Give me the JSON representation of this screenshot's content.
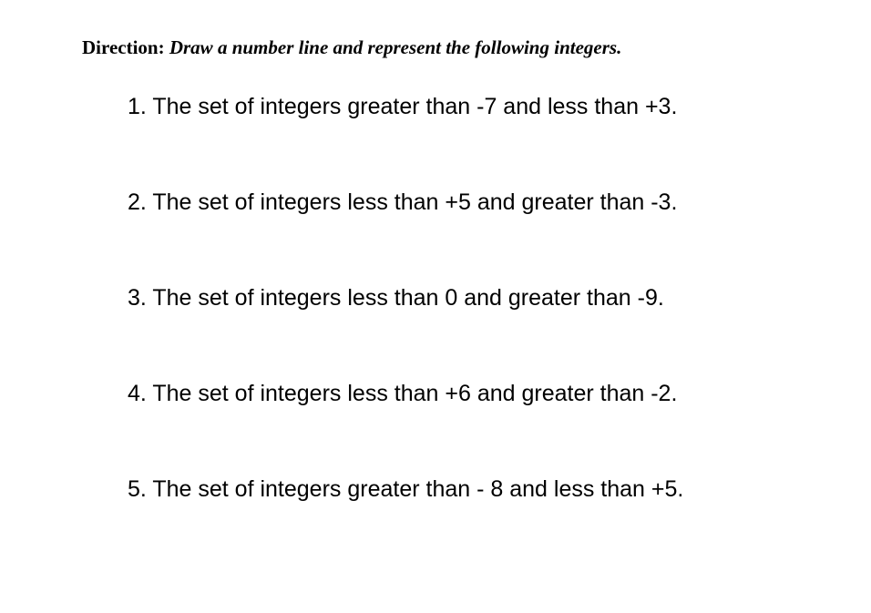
{
  "direction": {
    "label": "Direction:",
    "instruction": "Draw a number line and represent the following integers."
  },
  "questions": [
    {
      "number": "1.",
      "text": "The set of integers greater than -7 and less than +3."
    },
    {
      "number": "2.",
      "text": "The set of integers less than +5 and greater than -3."
    },
    {
      "number": "3.",
      "text": "The set of integers less than 0 and greater than -9."
    },
    {
      "number": "4.",
      "text": "The set of integers less than +6 and greater than -2."
    },
    {
      "number": "5.",
      "text": "The set of integers greater than - 8 and less than +5."
    }
  ],
  "styling": {
    "background_color": "#ffffff",
    "text_color": "#000000",
    "direction_font": "serif",
    "direction_fontsize": 21,
    "question_font": "sans-serif",
    "question_fontsize": 25,
    "question_spacing": 76
  }
}
